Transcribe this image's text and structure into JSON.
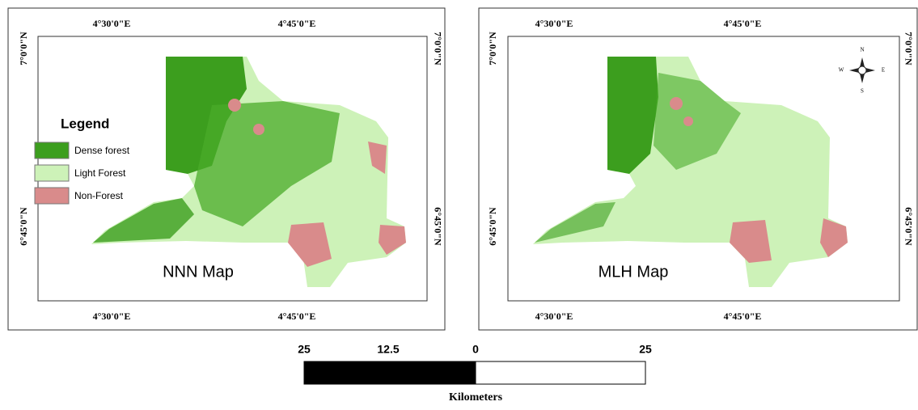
{
  "panels": [
    {
      "title": "NNN Map",
      "lon_top": [
        "4°30'0\"E",
        "4°45'0\"E"
      ],
      "lon_bottom": [
        "4°30'0\"E",
        "4°45'0\"E"
      ],
      "lat_left": [
        "7°0'0\"N",
        "6°45'0\"N"
      ],
      "lat_right": [
        "7°0'0\"N",
        "6°45'0\"N"
      ]
    },
    {
      "title": "MLH Map",
      "lon_top": [
        "4°30'0\"E",
        "4°45'0\"E"
      ],
      "lon_bottom": [
        "4°30'0\"E",
        "4°45'0\"E"
      ],
      "lat_left": [
        "7°0'0\"N",
        "6°45'0\"N"
      ],
      "lat_right": [
        "7°0'0\"N",
        "6°45'0\"N"
      ]
    }
  ],
  "legend": {
    "title": "Legend",
    "items": [
      "Dense forest",
      "Light Forest",
      "Non-Forest"
    ]
  },
  "compass": [
    "N",
    "E",
    "S",
    "W"
  ],
  "scale_bar": {
    "labels": [
      "25",
      "12.5",
      "0",
      "25"
    ],
    "unit": "Kilometers"
  }
}
